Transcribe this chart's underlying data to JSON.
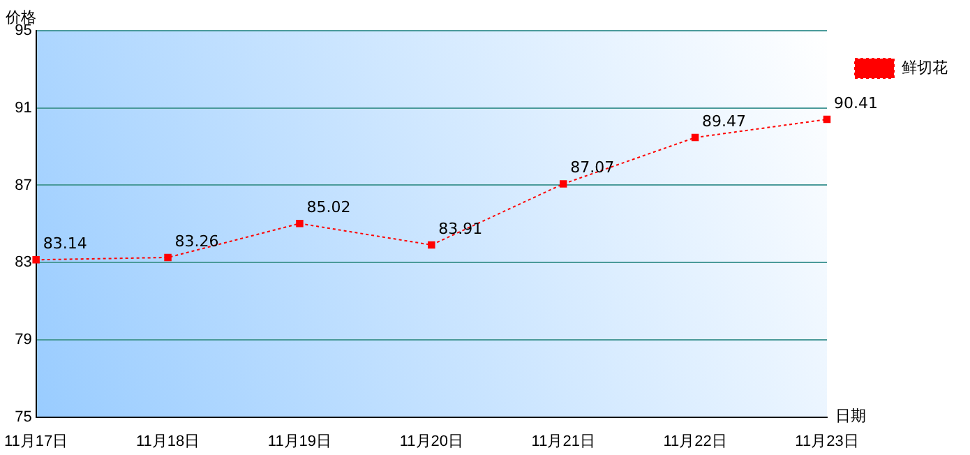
{
  "chart_data": {
    "type": "line",
    "xlabel": "日期",
    "ylabel": "价格",
    "categories": [
      "11月17日",
      "11月18日",
      "11月19日",
      "11月20日",
      "11月21日",
      "11月22日",
      "11月23日"
    ],
    "series": [
      {
        "name": "鲜切花",
        "color": "#ff0000",
        "values": [
          83.14,
          83.26,
          85.02,
          83.91,
          87.07,
          89.47,
          90.41
        ]
      }
    ],
    "ylim": [
      75,
      95
    ],
    "yticks": [
      75,
      79,
      83,
      87,
      91,
      95
    ],
    "grid": "y",
    "legend": "top right",
    "marker": "square",
    "line_style": "dotted",
    "data_labels": true
  }
}
